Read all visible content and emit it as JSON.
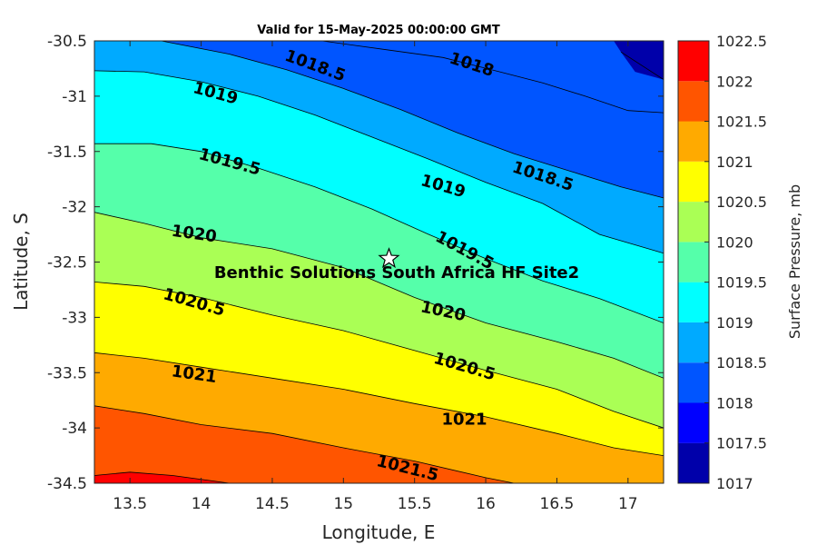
{
  "chart_data": {
    "type": "contour",
    "title": "Valid for 15-May-2025 00:00:00 GMT",
    "xlabel": "Longitude, E",
    "ylabel": "Latitude, S",
    "colorbar_label": "Surface Pressure, mb",
    "xlim": [
      13.25,
      17.25
    ],
    "ylim": [
      -34.5,
      -30.5
    ],
    "x_ticks": [
      "13.5",
      "14",
      "14.5",
      "15",
      "15.5",
      "16",
      "16.5",
      "17"
    ],
    "x_tick_values": [
      13.5,
      14,
      14.5,
      15,
      15.5,
      16,
      16.5,
      17
    ],
    "y_ticks": [
      "-30.5",
      "-31",
      "-31.5",
      "-32",
      "-32.5",
      "-33",
      "-33.5",
      "-34",
      "-34.5"
    ],
    "y_tick_values": [
      -30.5,
      -31,
      -31.5,
      -32,
      -32.5,
      -33,
      -33.5,
      -34,
      -34.5
    ],
    "levels": [
      1017,
      1017.5,
      1018,
      1018.5,
      1019,
      1019.5,
      1020,
      1020.5,
      1021,
      1021.5,
      1022,
      1022.5
    ],
    "colorbar_ticks": [
      "1017",
      "1017.5",
      "1018",
      "1018.5",
      "1019",
      "1019.5",
      "1020",
      "1020.5",
      "1021",
      "1021.5",
      "1022",
      "1022.5"
    ],
    "band_colors": [
      "#0000aa",
      "#0000ff",
      "#0055ff",
      "#00aaff",
      "#00ffff",
      "#55ffaa",
      "#aaff55",
      "#ffff00",
      "#ffaa00",
      "#ff5500",
      "#ff0000",
      "#aa0000"
    ],
    "contours": [
      {
        "level": 1018,
        "points": [
          [
            14.85,
            -30.5
          ],
          [
            15.3,
            -30.58
          ],
          [
            15.7,
            -30.65
          ],
          [
            16.1,
            -30.78
          ],
          [
            16.4,
            -30.88
          ],
          [
            16.7,
            -31.0
          ],
          [
            17.0,
            -31.13
          ],
          [
            17.25,
            -31.15
          ]
        ]
      },
      {
        "level": 1018.5,
        "points": [
          [
            13.72,
            -30.5
          ],
          [
            14.2,
            -30.62
          ],
          [
            14.6,
            -30.76
          ],
          [
            15.0,
            -30.93
          ],
          [
            15.4,
            -31.12
          ],
          [
            15.8,
            -31.33
          ],
          [
            16.2,
            -31.52
          ],
          [
            16.6,
            -31.68
          ],
          [
            16.95,
            -31.82
          ],
          [
            17.25,
            -31.92
          ]
        ]
      },
      {
        "level": 1019,
        "points": [
          [
            13.25,
            -30.77
          ],
          [
            13.6,
            -30.78
          ],
          [
            14.0,
            -30.87
          ],
          [
            14.4,
            -31.0
          ],
          [
            14.8,
            -31.17
          ],
          [
            15.2,
            -31.37
          ],
          [
            15.6,
            -31.57
          ],
          [
            16.0,
            -31.78
          ],
          [
            16.4,
            -31.97
          ],
          [
            16.8,
            -32.25
          ],
          [
            17.25,
            -32.42
          ]
        ]
      },
      {
        "level": 1019.5,
        "points": [
          [
            13.25,
            -31.43
          ],
          [
            13.65,
            -31.43
          ],
          [
            14.0,
            -31.5
          ],
          [
            14.4,
            -31.65
          ],
          [
            14.8,
            -31.82
          ],
          [
            15.2,
            -32.02
          ],
          [
            15.6,
            -32.25
          ],
          [
            16.0,
            -32.47
          ],
          [
            16.4,
            -32.67
          ],
          [
            16.8,
            -32.83
          ],
          [
            17.25,
            -33.05
          ]
        ]
      },
      {
        "level": 1020,
        "points": [
          [
            13.25,
            -32.05
          ],
          [
            13.6,
            -32.15
          ],
          [
            14.0,
            -32.28
          ],
          [
            14.5,
            -32.38
          ],
          [
            15.0,
            -32.55
          ],
          [
            15.5,
            -32.82
          ],
          [
            16.0,
            -33.05
          ],
          [
            16.5,
            -33.22
          ],
          [
            16.9,
            -33.37
          ],
          [
            17.25,
            -33.55
          ]
        ]
      },
      {
        "level": 1020.5,
        "points": [
          [
            13.25,
            -32.68
          ],
          [
            13.6,
            -32.72
          ],
          [
            14.0,
            -32.82
          ],
          [
            14.5,
            -32.98
          ],
          [
            15.0,
            -33.12
          ],
          [
            15.5,
            -33.3
          ],
          [
            16.0,
            -33.48
          ],
          [
            16.5,
            -33.65
          ],
          [
            16.9,
            -33.85
          ],
          [
            17.25,
            -34.0
          ]
        ]
      },
      {
        "level": 1021,
        "points": [
          [
            13.25,
            -33.32
          ],
          [
            13.6,
            -33.37
          ],
          [
            14.0,
            -33.45
          ],
          [
            14.5,
            -33.55
          ],
          [
            15.0,
            -33.65
          ],
          [
            15.5,
            -33.78
          ],
          [
            16.0,
            -33.9
          ],
          [
            16.5,
            -34.05
          ],
          [
            16.9,
            -34.18
          ],
          [
            17.25,
            -34.25
          ]
        ]
      },
      {
        "level": 1021.5,
        "points": [
          [
            13.25,
            -33.8
          ],
          [
            13.6,
            -33.87
          ],
          [
            14.0,
            -33.97
          ],
          [
            14.5,
            -34.05
          ],
          [
            15.0,
            -34.18
          ],
          [
            15.5,
            -34.3
          ],
          [
            16.0,
            -34.45
          ],
          [
            16.2,
            -34.5
          ]
        ]
      },
      {
        "level": 1022,
        "points": [
          [
            13.25,
            -34.43
          ],
          [
            13.5,
            -34.4
          ],
          [
            13.8,
            -34.43
          ],
          [
            14.2,
            -34.5
          ]
        ]
      }
    ],
    "corner_1017.5": [
      [
        16.9,
        -30.5
      ],
      [
        17.25,
        -30.5
      ],
      [
        17.25,
        -30.85
      ],
      [
        17.05,
        -30.78
      ],
      [
        16.95,
        -30.6
      ]
    ],
    "contour_labels": [
      {
        "text": "1018.5",
        "x": 14.8,
        "y": -30.73,
        "angle": 20
      },
      {
        "text": "1018",
        "x": 15.9,
        "y": -30.72,
        "angle": 18
      },
      {
        "text": "1019",
        "x": 14.1,
        "y": -30.98,
        "angle": 15
      },
      {
        "text": "1018.5",
        "x": 16.4,
        "y": -31.73,
        "angle": 18
      },
      {
        "text": "1019.5",
        "x": 14.2,
        "y": -31.6,
        "angle": 15
      },
      {
        "text": "1019",
        "x": 15.7,
        "y": -31.82,
        "angle": 16
      },
      {
        "text": "1020",
        "x": 13.95,
        "y": -32.25,
        "angle": 8
      },
      {
        "text": "1019.5",
        "x": 15.85,
        "y": -32.4,
        "angle": 28
      },
      {
        "text": "1020.5",
        "x": 13.95,
        "y": -32.87,
        "angle": 16
      },
      {
        "text": "1020",
        "x": 15.7,
        "y": -32.95,
        "angle": 12
      },
      {
        "text": "1020.5",
        "x": 15.85,
        "y": -33.45,
        "angle": 16
      },
      {
        "text": "1021",
        "x": 13.95,
        "y": -33.52,
        "angle": 8
      },
      {
        "text": "1021",
        "x": 15.85,
        "y": -33.93,
        "angle": 0
      },
      {
        "text": "1021.5",
        "x": 15.45,
        "y": -34.37,
        "angle": 14
      }
    ],
    "site": {
      "name": "Benthic Solutions South Africa HF Site2",
      "x": 15.32,
      "y": -32.47
    }
  }
}
